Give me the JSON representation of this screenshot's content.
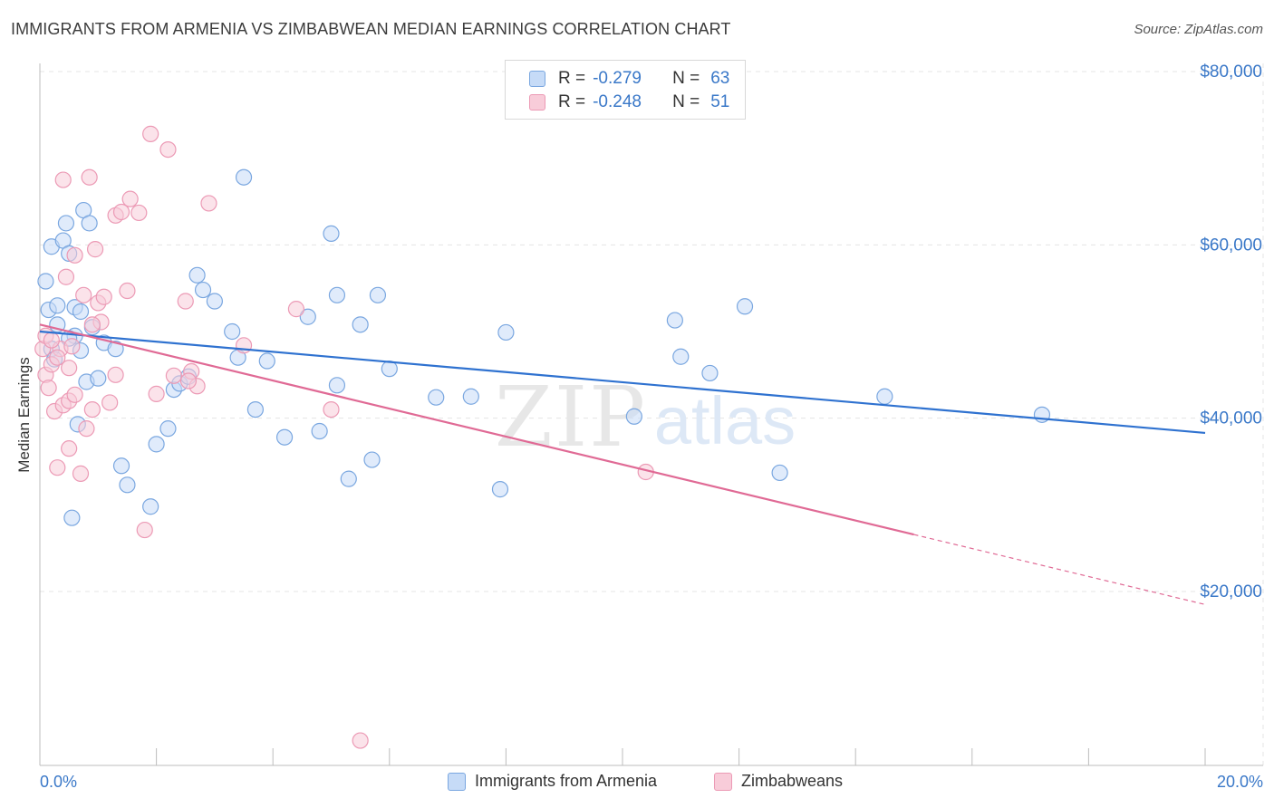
{
  "header": {
    "title": "IMMIGRANTS FROM ARMENIA VS ZIMBABWEAN MEDIAN EARNINGS CORRELATION CHART",
    "source": "Source: ZipAtlas.com"
  },
  "watermark": {
    "zip": "ZIP",
    "atlas": "atlas"
  },
  "legend": {
    "rows": [
      {
        "r_label": "R =",
        "r_value": "-0.279",
        "n_label": "N =",
        "n_value": "63"
      },
      {
        "r_label": "R =",
        "r_value": "-0.248",
        "n_label": "N =",
        "n_value": "51"
      }
    ]
  },
  "colors": {
    "blue_fill": "#c6dbf7",
    "blue_stroke": "#7aa7e0",
    "blue_line": "#2f72d0",
    "pink_fill": "#f8ccd9",
    "pink_stroke": "#ec9ab5",
    "pink_line": "#e06a95",
    "grid": "#e4e4e4",
    "label": "#3a78c8"
  },
  "chart_data": {
    "type": "scatter",
    "title": "IMMIGRANTS FROM ARMENIA VS ZIMBABWEAN MEDIAN EARNINGS CORRELATION CHART",
    "xlabel": "",
    "ylabel": "Median Earnings",
    "xlim": [
      0,
      20
    ],
    "ylim": [
      0,
      82000
    ],
    "x_tick_labels": [
      "0.0%",
      "20.0%"
    ],
    "y_ticks": [
      20000,
      40000,
      60000,
      80000
    ],
    "y_tick_labels": [
      "$20,000",
      "$40,000",
      "$60,000",
      "$80,000"
    ],
    "series": [
      {
        "name": "Immigrants from Armenia",
        "color": "#7aa7e0",
        "trend": {
          "x": [
            0,
            20
          ],
          "y": [
            50000,
            38300
          ],
          "dash_from": null
        },
        "points": [
          [
            0.1,
            55800
          ],
          [
            0.15,
            52500
          ],
          [
            0.2,
            48000
          ],
          [
            0.2,
            59800
          ],
          [
            0.3,
            50800
          ],
          [
            0.3,
            53000
          ],
          [
            0.4,
            60500
          ],
          [
            0.45,
            62500
          ],
          [
            0.5,
            59000
          ],
          [
            0.55,
            28500
          ],
          [
            0.6,
            52800
          ],
          [
            0.6,
            49500
          ],
          [
            0.65,
            39300
          ],
          [
            0.7,
            47800
          ],
          [
            0.75,
            64000
          ],
          [
            0.8,
            44200
          ],
          [
            0.85,
            62500
          ],
          [
            0.9,
            50500
          ],
          [
            1.0,
            44600
          ],
          [
            1.1,
            48700
          ],
          [
            1.4,
            34500
          ],
          [
            1.5,
            32300
          ],
          [
            1.9,
            29800
          ],
          [
            2.0,
            37000
          ],
          [
            2.2,
            38800
          ],
          [
            2.3,
            43300
          ],
          [
            2.4,
            44000
          ],
          [
            2.55,
            44800
          ],
          [
            2.7,
            56500
          ],
          [
            2.8,
            54800
          ],
          [
            3.0,
            53500
          ],
          [
            3.3,
            50000
          ],
          [
            3.4,
            47000
          ],
          [
            3.5,
            67800
          ],
          [
            3.7,
            41000
          ],
          [
            3.9,
            46600
          ],
          [
            4.2,
            37800
          ],
          [
            4.6,
            51700
          ],
          [
            4.8,
            38500
          ],
          [
            5.0,
            61300
          ],
          [
            5.1,
            54200
          ],
          [
            5.1,
            43800
          ],
          [
            5.3,
            33000
          ],
          [
            5.5,
            50800
          ],
          [
            5.7,
            35200
          ],
          [
            5.8,
            54200
          ],
          [
            6.0,
            45700
          ],
          [
            6.8,
            42400
          ],
          [
            7.4,
            42500
          ],
          [
            7.9,
            31800
          ],
          [
            8.0,
            49900
          ],
          [
            10.2,
            40200
          ],
          [
            10.9,
            51300
          ],
          [
            11.0,
            47100
          ],
          [
            11.5,
            45200
          ],
          [
            12.1,
            52900
          ],
          [
            12.7,
            33700
          ],
          [
            14.5,
            42500
          ],
          [
            17.2,
            40400
          ],
          [
            0.25,
            46800
          ],
          [
            0.5,
            49200
          ],
          [
            0.7,
            52300
          ],
          [
            1.3,
            48000
          ]
        ]
      },
      {
        "name": "Zimbabweans",
        "color": "#ec9ab5",
        "trend": {
          "x": [
            0,
            20
          ],
          "y": [
            50800,
            18500
          ],
          "dash_from": 15
        },
        "points": [
          [
            0.05,
            48000
          ],
          [
            0.1,
            45000
          ],
          [
            0.1,
            49500
          ],
          [
            0.15,
            43500
          ],
          [
            0.2,
            46200
          ],
          [
            0.25,
            40800
          ],
          [
            0.3,
            34300
          ],
          [
            0.35,
            48000
          ],
          [
            0.4,
            41500
          ],
          [
            0.4,
            67500
          ],
          [
            0.45,
            56300
          ],
          [
            0.5,
            45800
          ],
          [
            0.5,
            42000
          ],
          [
            0.5,
            36500
          ],
          [
            0.6,
            42700
          ],
          [
            0.6,
            58800
          ],
          [
            0.7,
            33600
          ],
          [
            0.75,
            54200
          ],
          [
            0.8,
            38800
          ],
          [
            0.85,
            67800
          ],
          [
            0.9,
            41000
          ],
          [
            0.95,
            59500
          ],
          [
            1.0,
            53300
          ],
          [
            1.05,
            51100
          ],
          [
            1.1,
            54000
          ],
          [
            1.2,
            41800
          ],
          [
            1.3,
            63400
          ],
          [
            1.4,
            63800
          ],
          [
            1.5,
            54700
          ],
          [
            1.55,
            65300
          ],
          [
            1.7,
            63700
          ],
          [
            1.8,
            27100
          ],
          [
            1.9,
            72800
          ],
          [
            2.0,
            42800
          ],
          [
            2.2,
            71000
          ],
          [
            2.3,
            44900
          ],
          [
            2.5,
            53500
          ],
          [
            2.6,
            45400
          ],
          [
            2.7,
            43700
          ],
          [
            2.9,
            64800
          ],
          [
            3.5,
            48400
          ],
          [
            4.4,
            52600
          ],
          [
            5.0,
            41000
          ],
          [
            5.5,
            2800
          ],
          [
            10.4,
            33800
          ],
          [
            0.2,
            49000
          ],
          [
            0.3,
            47000
          ],
          [
            0.55,
            48300
          ],
          [
            0.9,
            50800
          ],
          [
            1.3,
            45000
          ],
          [
            2.55,
            44300
          ]
        ]
      }
    ]
  },
  "bottom_legend": {
    "items": [
      "Immigrants from Armenia",
      "Zimbabweans"
    ]
  }
}
